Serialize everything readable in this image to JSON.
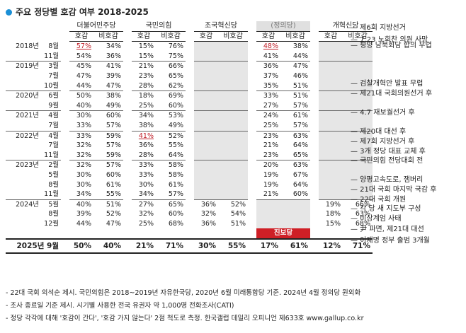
{
  "title": "주요 정당별 호감 여부 2018-2025",
  "parties": [
    "더불어민주당",
    "국민의힘",
    "조국혁신당",
    "(정의당)",
    "개혁신당"
  ],
  "sub_good": "호감",
  "sub_bad": "비호감",
  "progressive_label": "진보당",
  "rows": [
    {
      "year": "2018년",
      "month": "8월",
      "vals": [
        "57%",
        "34%",
        "15%",
        "76%",
        "",
        "",
        "48%",
        "38%",
        "",
        ""
      ],
      "sep": false
    },
    {
      "year": "",
      "month": "11월",
      "vals": [
        "54%",
        "36%",
        "15%",
        "75%",
        "",
        "",
        "41%",
        "44%",
        "",
        ""
      ],
      "sep": false
    },
    {
      "year": "2019년",
      "month": "3월",
      "vals": [
        "45%",
        "41%",
        "21%",
        "66%",
        "",
        "",
        "36%",
        "47%",
        "",
        ""
      ],
      "sep": true
    },
    {
      "year": "",
      "month": "7월",
      "vals": [
        "47%",
        "39%",
        "23%",
        "65%",
        "",
        "",
        "37%",
        "46%",
        "",
        ""
      ],
      "sep": false
    },
    {
      "year": "",
      "month": "10월",
      "vals": [
        "44%",
        "47%",
        "28%",
        "62%",
        "",
        "",
        "35%",
        "51%",
        "",
        ""
      ],
      "sep": false
    },
    {
      "year": "2020년",
      "month": "6월",
      "vals": [
        "50%",
        "38%",
        "18%",
        "69%",
        "",
        "",
        "33%",
        "51%",
        "",
        ""
      ],
      "sep": true
    },
    {
      "year": "",
      "month": "9월",
      "vals": [
        "40%",
        "49%",
        "25%",
        "60%",
        "",
        "",
        "27%",
        "57%",
        "",
        ""
      ],
      "sep": false
    },
    {
      "year": "2021년",
      "month": "4월",
      "vals": [
        "30%",
        "60%",
        "34%",
        "53%",
        "",
        "",
        "24%",
        "61%",
        "",
        ""
      ],
      "sep": true
    },
    {
      "year": "",
      "month": "7월",
      "vals": [
        "33%",
        "57%",
        "38%",
        "49%",
        "",
        "",
        "25%",
        "57%",
        "",
        ""
      ],
      "sep": false
    },
    {
      "year": "2022년",
      "month": "4월",
      "vals": [
        "33%",
        "59%",
        "41%",
        "52%",
        "",
        "",
        "23%",
        "63%",
        "",
        ""
      ],
      "sep": true
    },
    {
      "year": "",
      "month": "7월",
      "vals": [
        "32%",
        "57%",
        "36%",
        "55%",
        "",
        "",
        "21%",
        "64%",
        "",
        ""
      ],
      "sep": false
    },
    {
      "year": "",
      "month": "11월",
      "vals": [
        "32%",
        "59%",
        "28%",
        "64%",
        "",
        "",
        "23%",
        "65%",
        "",
        ""
      ],
      "sep": false
    },
    {
      "year": "2023년",
      "month": "2월",
      "vals": [
        "32%",
        "57%",
        "33%",
        "58%",
        "",
        "",
        "20%",
        "63%",
        "",
        ""
      ],
      "sep": true
    },
    {
      "year": "",
      "month": "5월",
      "vals": [
        "30%",
        "60%",
        "33%",
        "58%",
        "",
        "",
        "19%",
        "67%",
        "",
        ""
      ],
      "sep": false
    },
    {
      "year": "",
      "month": "8월",
      "vals": [
        "30%",
        "61%",
        "30%",
        "61%",
        "",
        "",
        "19%",
        "64%",
        "",
        ""
      ],
      "sep": false
    },
    {
      "year": "",
      "month": "11월",
      "vals": [
        "34%",
        "55%",
        "34%",
        "57%",
        "",
        "",
        "21%",
        "60%",
        "",
        ""
      ],
      "sep": false
    },
    {
      "year": "2024년",
      "month": "5월",
      "vals": [
        "40%",
        "51%",
        "27%",
        "65%",
        "36%",
        "52%",
        "",
        "",
        "19%",
        "66%"
      ],
      "sep": true
    },
    {
      "year": "",
      "month": "8월",
      "vals": [
        "39%",
        "52%",
        "32%",
        "60%",
        "32%",
        "54%",
        "",
        "",
        "18%",
        "63%"
      ],
      "sep": false
    },
    {
      "year": "",
      "month": "12월",
      "vals": [
        "44%",
        "47%",
        "25%",
        "68%",
        "36%",
        "51%",
        "",
        "",
        "15%",
        "68%"
      ],
      "sep": false
    }
  ],
  "last_row": {
    "label": "2025년 9월",
    "vals": [
      "50%",
      "40%",
      "21%",
      "71%",
      "30%",
      "55%",
      "17%",
      "61%",
      "12%",
      "71%"
    ]
  },
  "events": [
    {
      "row": 0,
      "offset": -25,
      "text": "제6회 지방선거"
    },
    {
      "row": 0,
      "offset": -8,
      "text": "7.23 노회찬 의원 사망"
    },
    {
      "row": 0,
      "offset": 0,
      "text": "평양 남북회담 합의 무렵"
    },
    {
      "row": 4,
      "offset": 0,
      "text": "검찰개혁안 발표 무렵"
    },
    {
      "row": 5,
      "offset": 0,
      "text": "제21대 국회의원선거 후"
    },
    {
      "row": 7,
      "offset": 0,
      "text": "4.7 재보궐선거 후"
    },
    {
      "row": 9,
      "offset": 0,
      "text": "제20대 대선 후"
    },
    {
      "row": 10,
      "offset": 0,
      "text": "제7회 지방선거 후"
    },
    {
      "row": 11,
      "offset": 0,
      "text": "3개 정당 대표 교체 후"
    },
    {
      "row": 12,
      "offset": 0,
      "text": "국민의힘 전당대회 전"
    },
    {
      "row": 14,
      "offset": 0,
      "text": "양평고속도로, 잼버리"
    },
    {
      "row": 15,
      "offset": 0,
      "text": "21대 국회 마지막 국감 후"
    },
    {
      "row": 16,
      "offset": 0,
      "text": "22대 국회 개원"
    },
    {
      "row": 17,
      "offset": 0,
      "text": "각 당 새 지도부 구성"
    },
    {
      "row": 18,
      "offset": 0,
      "text": "비상계엄 사태"
    },
    {
      "row": 19,
      "offset": 0,
      "text": "尹 파면, 제21대 대선"
    },
    {
      "row": 20,
      "offset": 0,
      "text": "이재명 정부 출범 3개월"
    }
  ],
  "notes": [
    "- 22대 국회 의석순 제시. 국민의힘은 2018~2019년 자유한국당, 2020년 6월 미래통합당 기준. 2024년 4월 정의당 원외화",
    "- 조사 종료일 기준 제시. 시기별 사용한 전국 유권자 약 1,000명 전화조사(CATI)",
    "- 정당 각각에 대해 '호감이 간다', '호감 가지 않는다' 2점 척도로 측정. 한국갤럽 데일리 오피니언 제633호 www.gallup.co.kr"
  ]
}
